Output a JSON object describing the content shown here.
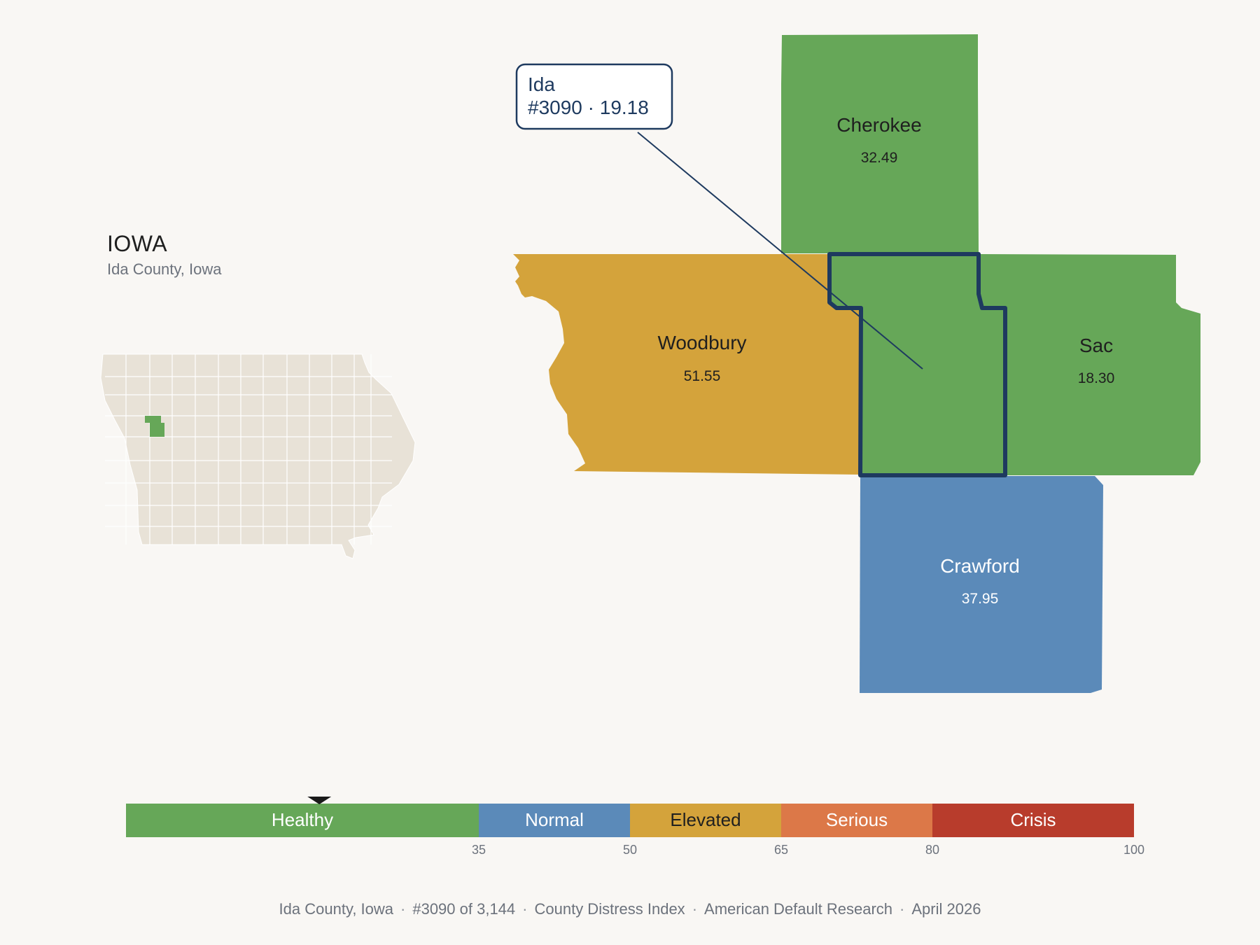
{
  "header": {
    "state_title": "IOWA",
    "state_subtitle": "Ida County, Iowa"
  },
  "focus_county": {
    "name": "Ida",
    "rank_score": "#3090 · 19.18",
    "value": 19.18,
    "color": "#66a758"
  },
  "neighbors": [
    {
      "name": "Cherokee",
      "value": "32.49",
      "color": "#66a758"
    },
    {
      "name": "Woodbury",
      "value": "51.55",
      "color": "#d4a33b"
    },
    {
      "name": "Sac",
      "value": "18.30",
      "color": "#66a758"
    },
    {
      "name": "Crawford",
      "value": "37.95",
      "color": "#5b8ab9"
    }
  ],
  "scale": {
    "min": 0,
    "max": 100,
    "marker_value": 19.18,
    "bands": [
      {
        "label": "Healthy",
        "from": 0,
        "to": 35,
        "color": "#66a758",
        "text_color": "#ffffff"
      },
      {
        "label": "Normal",
        "from": 35,
        "to": 50,
        "color": "#5b8ab9",
        "text_color": "#ffffff"
      },
      {
        "label": "Elevated",
        "from": 50,
        "to": 65,
        "color": "#d4a33b",
        "text_color": "#1f1f1f"
      },
      {
        "label": "Serious",
        "from": 65,
        "to": 80,
        "color": "#dc7848",
        "text_color": "#ffffff"
      },
      {
        "label": "Crisis",
        "from": 80,
        "to": 100,
        "color": "#b83c2c",
        "text_color": "#ffffff"
      }
    ],
    "ticks": [
      "35",
      "50",
      "65",
      "80",
      "100"
    ]
  },
  "footer": {
    "items": [
      "Ida County, Iowa",
      "#3090 of 3,144",
      "County Distress Index",
      "American Default Research",
      "April 2026"
    ]
  },
  "colors": {
    "background": "#f9f7f4",
    "state_fill": "#e8e2d7",
    "outline": "#1e3a5f"
  }
}
